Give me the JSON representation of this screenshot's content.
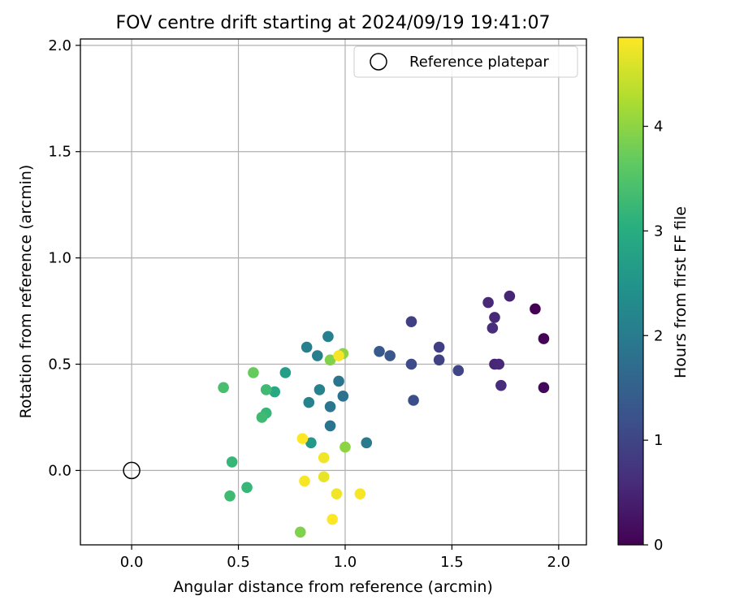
{
  "chart_data": {
    "type": "scatter",
    "title": "FOV centre drift starting at 2024/09/19 19:41:07",
    "xlabel": "Angular distance from reference (arcmin)",
    "ylabel": "Rotation from reference (arcmin)",
    "xlim": [
      -0.24,
      2.13
    ],
    "ylim": [
      -0.35,
      2.03
    ],
    "xticks": [
      0.0,
      0.5,
      1.0,
      1.5,
      2.0
    ],
    "xtick_labels": [
      "0.0",
      "0.5",
      "1.0",
      "1.5",
      "2.0"
    ],
    "yticks": [
      0.0,
      0.5,
      1.0,
      1.5,
      2.0
    ],
    "ytick_labels": [
      "0.0",
      "0.5",
      "1.0",
      "1.5",
      "2.0"
    ],
    "grid": true,
    "legend": {
      "position": "top-right",
      "entries": [
        "Reference platepar"
      ]
    },
    "reference_point": {
      "x": 0.0,
      "y": 0.0,
      "label": "Reference platepar",
      "marker": "hollow-circle"
    },
    "colorbar": {
      "label": "Hours from first FF file",
      "colormap": "viridis",
      "range": [
        0,
        4.85
      ],
      "ticks": [
        0,
        1,
        2,
        3,
        4
      ],
      "tick_labels": [
        "0",
        "1",
        "2",
        "3",
        "4"
      ]
    },
    "points": [
      {
        "x": 1.89,
        "y": 0.76,
        "c": 0.0
      },
      {
        "x": 1.93,
        "y": 0.62,
        "c": 0.05
      },
      {
        "x": 1.93,
        "y": 0.39,
        "c": 0.1
      },
      {
        "x": 1.77,
        "y": 0.82,
        "c": 0.5
      },
      {
        "x": 1.67,
        "y": 0.79,
        "c": 0.55
      },
      {
        "x": 1.7,
        "y": 0.72,
        "c": 0.55
      },
      {
        "x": 1.69,
        "y": 0.67,
        "c": 0.6
      },
      {
        "x": 1.7,
        "y": 0.5,
        "c": 0.5
      },
      {
        "x": 1.72,
        "y": 0.5,
        "c": 0.55
      },
      {
        "x": 1.73,
        "y": 0.4,
        "c": 0.6
      },
      {
        "x": 1.53,
        "y": 0.47,
        "c": 1.0
      },
      {
        "x": 1.44,
        "y": 0.58,
        "c": 0.9
      },
      {
        "x": 1.44,
        "y": 0.52,
        "c": 0.95
      },
      {
        "x": 1.31,
        "y": 0.7,
        "c": 0.9
      },
      {
        "x": 1.31,
        "y": 0.5,
        "c": 1.1
      },
      {
        "x": 1.32,
        "y": 0.33,
        "c": 1.15
      },
      {
        "x": 1.21,
        "y": 0.54,
        "c": 1.3
      },
      {
        "x": 1.16,
        "y": 0.56,
        "c": 1.35
      },
      {
        "x": 1.1,
        "y": 0.13,
        "c": 2.0
      },
      {
        "x": 0.99,
        "y": 0.35,
        "c": 1.8
      },
      {
        "x": 0.97,
        "y": 0.42,
        "c": 1.9
      },
      {
        "x": 0.93,
        "y": 0.3,
        "c": 1.9
      },
      {
        "x": 0.93,
        "y": 0.21,
        "c": 1.85
      },
      {
        "x": 0.92,
        "y": 0.63,
        "c": 2.1
      },
      {
        "x": 0.88,
        "y": 0.38,
        "c": 2.15
      },
      {
        "x": 0.87,
        "y": 0.54,
        "c": 2.05
      },
      {
        "x": 0.82,
        "y": 0.58,
        "c": 2.1
      },
      {
        "x": 0.83,
        "y": 0.32,
        "c": 2.15
      },
      {
        "x": 0.84,
        "y": 0.13,
        "c": 2.6
      },
      {
        "x": 0.72,
        "y": 0.46,
        "c": 2.7
      },
      {
        "x": 0.67,
        "y": 0.37,
        "c": 2.9
      },
      {
        "x": 0.63,
        "y": 0.38,
        "c": 3.3
      },
      {
        "x": 0.63,
        "y": 0.27,
        "c": 3.2
      },
      {
        "x": 0.61,
        "y": 0.25,
        "c": 3.3
      },
      {
        "x": 0.57,
        "y": 0.46,
        "c": 3.7
      },
      {
        "x": 0.54,
        "y": -0.08,
        "c": 3.2
      },
      {
        "x": 0.47,
        "y": 0.04,
        "c": 3.2
      },
      {
        "x": 0.46,
        "y": -0.12,
        "c": 3.3
      },
      {
        "x": 0.43,
        "y": 0.39,
        "c": 3.4
      },
      {
        "x": 0.93,
        "y": 0.52,
        "c": 3.9
      },
      {
        "x": 0.99,
        "y": 0.55,
        "c": 4.0
      },
      {
        "x": 1.0,
        "y": 0.11,
        "c": 4.0
      },
      {
        "x": 0.79,
        "y": -0.29,
        "c": 3.9
      },
      {
        "x": 0.97,
        "y": 0.54,
        "c": 4.8
      },
      {
        "x": 0.8,
        "y": 0.15,
        "c": 4.85
      },
      {
        "x": 0.9,
        "y": 0.06,
        "c": 4.75
      },
      {
        "x": 0.9,
        "y": -0.03,
        "c": 4.7
      },
      {
        "x": 0.81,
        "y": -0.05,
        "c": 4.8
      },
      {
        "x": 0.96,
        "y": -0.11,
        "c": 4.75
      },
      {
        "x": 1.07,
        "y": -0.11,
        "c": 4.8
      },
      {
        "x": 0.94,
        "y": -0.23,
        "c": 4.85
      }
    ]
  }
}
